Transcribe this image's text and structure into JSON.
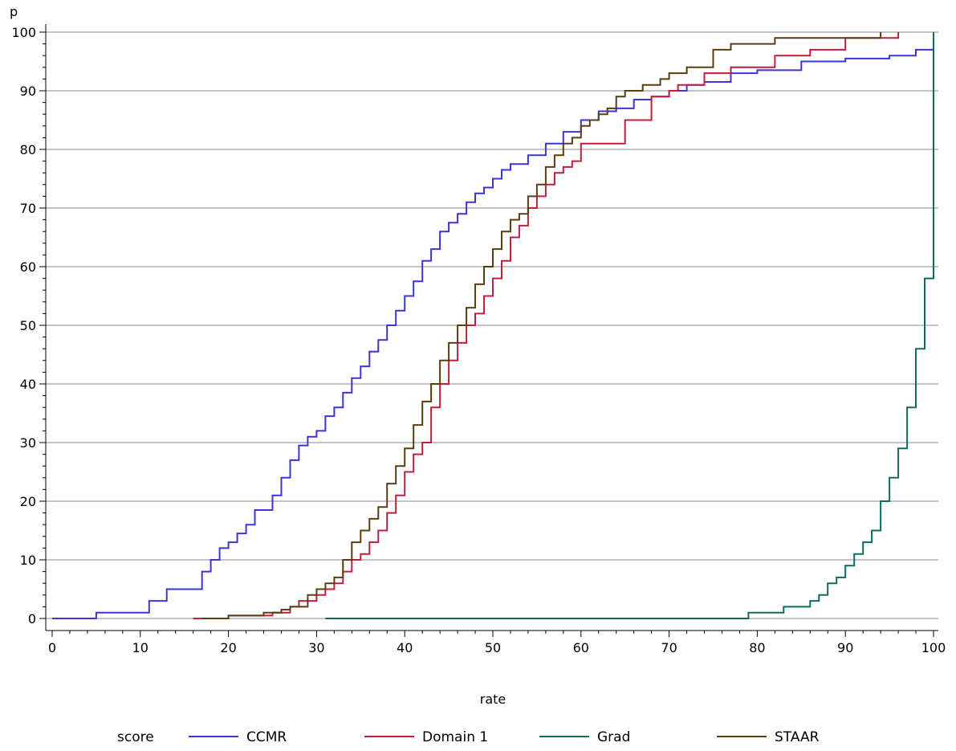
{
  "chart_data": {
    "type": "line",
    "step": true,
    "xlabel": "rate",
    "ylabel": "p",
    "xlim": [
      0,
      100
    ],
    "ylim": [
      0,
      100
    ],
    "xticks": [
      0,
      10,
      20,
      30,
      40,
      50,
      60,
      70,
      80,
      90,
      100
    ],
    "yticks": [
      0,
      10,
      20,
      30,
      40,
      50,
      60,
      70,
      80,
      90,
      100
    ],
    "xticks_minor_step": 2,
    "yticks_minor_step": 2,
    "grid": "horizontal",
    "legend_title": "score",
    "legend_position": "bottom",
    "series": [
      {
        "name": "CCMR",
        "color": "#3a35d6",
        "points": [
          [
            0,
            0
          ],
          [
            5,
            1
          ],
          [
            11,
            3
          ],
          [
            13,
            5
          ],
          [
            17,
            8
          ],
          [
            18,
            10
          ],
          [
            19,
            12
          ],
          [
            20,
            13
          ],
          [
            21,
            14.5
          ],
          [
            22,
            16
          ],
          [
            23,
            18.5
          ],
          [
            25,
            21
          ],
          [
            26,
            24
          ],
          [
            27,
            27
          ],
          [
            28,
            29.5
          ],
          [
            29,
            31
          ],
          [
            30,
            32
          ],
          [
            31,
            34.5
          ],
          [
            32,
            36
          ],
          [
            33,
            38.5
          ],
          [
            34,
            41
          ],
          [
            35,
            43
          ],
          [
            36,
            45.5
          ],
          [
            37,
            47.5
          ],
          [
            38,
            50
          ],
          [
            39,
            52.5
          ],
          [
            40,
            55
          ],
          [
            41,
            57.5
          ],
          [
            42,
            61
          ],
          [
            43,
            63
          ],
          [
            44,
            66
          ],
          [
            45,
            67.5
          ],
          [
            46,
            69
          ],
          [
            47,
            71
          ],
          [
            48,
            72.5
          ],
          [
            49,
            73.5
          ],
          [
            50,
            75
          ],
          [
            51,
            76.5
          ],
          [
            52,
            77.5
          ],
          [
            54,
            79
          ],
          [
            56,
            81
          ],
          [
            58,
            83
          ],
          [
            60,
            85
          ],
          [
            62,
            86.5
          ],
          [
            64,
            87
          ],
          [
            66,
            88.5
          ],
          [
            68,
            89
          ],
          [
            70,
            90
          ],
          [
            72,
            91
          ],
          [
            74,
            91.5
          ],
          [
            77,
            93
          ],
          [
            80,
            93.5
          ],
          [
            85,
            95
          ],
          [
            90,
            95.5
          ],
          [
            95,
            96
          ],
          [
            98,
            97
          ],
          [
            100,
            98
          ]
        ]
      },
      {
        "name": "Domain 1",
        "color": "#c21d3c",
        "points": [
          [
            16,
            0
          ],
          [
            20,
            0.5
          ],
          [
            25,
            1
          ],
          [
            27,
            2
          ],
          [
            28,
            3
          ],
          [
            30,
            4
          ],
          [
            31,
            5
          ],
          [
            32,
            6
          ],
          [
            33,
            8
          ],
          [
            34,
            10
          ],
          [
            35,
            11
          ],
          [
            36,
            13
          ],
          [
            37,
            15
          ],
          [
            38,
            18
          ],
          [
            39,
            21
          ],
          [
            40,
            25
          ],
          [
            41,
            28
          ],
          [
            42,
            30
          ],
          [
            43,
            36
          ],
          [
            44,
            40
          ],
          [
            45,
            44
          ],
          [
            46,
            47
          ],
          [
            47,
            50
          ],
          [
            48,
            52
          ],
          [
            49,
            55
          ],
          [
            50,
            58
          ],
          [
            51,
            61
          ],
          [
            52,
            65
          ],
          [
            53,
            67
          ],
          [
            54,
            70
          ],
          [
            55,
            72
          ],
          [
            56,
            74
          ],
          [
            57,
            76
          ],
          [
            58,
            77
          ],
          [
            59,
            78
          ],
          [
            60,
            81
          ],
          [
            65,
            85
          ],
          [
            68,
            89
          ],
          [
            70,
            90
          ],
          [
            71,
            91
          ],
          [
            74,
            93
          ],
          [
            77,
            94
          ],
          [
            82,
            96
          ],
          [
            86,
            97
          ],
          [
            90,
            99
          ],
          [
            96,
            100
          ]
        ]
      },
      {
        "name": "Grad",
        "color": "#0d6b5f",
        "points": [
          [
            31,
            0
          ],
          [
            79,
            1
          ],
          [
            83,
            2
          ],
          [
            86,
            3
          ],
          [
            87,
            4
          ],
          [
            88,
            6
          ],
          [
            89,
            7
          ],
          [
            90,
            9
          ],
          [
            91,
            11
          ],
          [
            92,
            13
          ],
          [
            93,
            15
          ],
          [
            94,
            20
          ],
          [
            95,
            24
          ],
          [
            96,
            29
          ],
          [
            97,
            36
          ],
          [
            98,
            46
          ],
          [
            99,
            58
          ],
          [
            100,
            73
          ],
          [
            100,
            100
          ]
        ]
      },
      {
        "name": "STAAR",
        "color": "#5a3e10",
        "points": [
          [
            17,
            0
          ],
          [
            20,
            0.5
          ],
          [
            24,
            1
          ],
          [
            26,
            1.5
          ],
          [
            27,
            2
          ],
          [
            29,
            4
          ],
          [
            30,
            5
          ],
          [
            31,
            6
          ],
          [
            32,
            7
          ],
          [
            33,
            10
          ],
          [
            34,
            13
          ],
          [
            35,
            15
          ],
          [
            36,
            17
          ],
          [
            37,
            19
          ],
          [
            38,
            23
          ],
          [
            39,
            26
          ],
          [
            40,
            29
          ],
          [
            41,
            33
          ],
          [
            42,
            37
          ],
          [
            43,
            40
          ],
          [
            44,
            44
          ],
          [
            45,
            47
          ],
          [
            46,
            50
          ],
          [
            47,
            53
          ],
          [
            48,
            57
          ],
          [
            49,
            60
          ],
          [
            50,
            63
          ],
          [
            51,
            66
          ],
          [
            52,
            68
          ],
          [
            53,
            69
          ],
          [
            54,
            72
          ],
          [
            55,
            74
          ],
          [
            56,
            77
          ],
          [
            57,
            79
          ],
          [
            58,
            81
          ],
          [
            59,
            82
          ],
          [
            60,
            84
          ],
          [
            61,
            85
          ],
          [
            62,
            86
          ],
          [
            63,
            87
          ],
          [
            64,
            89
          ],
          [
            65,
            90
          ],
          [
            67,
            91
          ],
          [
            69,
            92
          ],
          [
            70,
            93
          ],
          [
            72,
            94
          ],
          [
            75,
            97
          ],
          [
            77,
            98
          ],
          [
            82,
            99
          ],
          [
            94,
            100
          ]
        ]
      }
    ]
  }
}
